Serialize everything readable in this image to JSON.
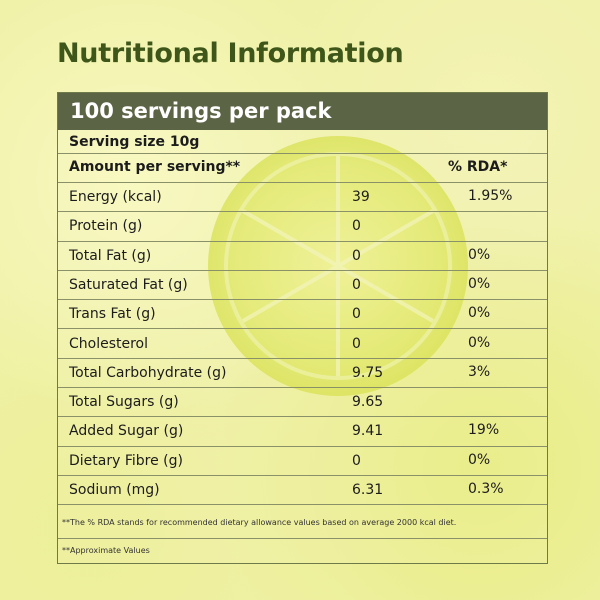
{
  "title": "Nutritional Information",
  "header": "100 servings per pack",
  "serving_size": "Serving size 10g",
  "amount_per_serving": "Amount per serving**",
  "rda_heading": "% RDA*",
  "nutrients": [
    {
      "name": "Energy (kcal)",
      "value": "39",
      "rda": "1.95%"
    },
    {
      "name": "Protein (g)",
      "value": "0",
      "rda": ""
    },
    {
      "name": "Total Fat  (g)",
      "value": "0",
      "rda": "0%"
    },
    {
      "name": "Saturated Fat (g)",
      "value": "0",
      "rda": "0%"
    },
    {
      "name": "Trans Fat (g)",
      "value": "0",
      "rda": "0%"
    },
    {
      "name": "Cholesterol",
      "value": "0",
      "rda": "0%"
    },
    {
      "name": "Total Carbohydrate (g)",
      "value": "9.75",
      "rda": "3%"
    },
    {
      "name": "Total Sugars (g)",
      "value": "9.65",
      "rda": ""
    },
    {
      "name": "Added Sugar (g)",
      "value": "9.41",
      "rda": "19%"
    },
    {
      "name": "Dietary Fibre (g)",
      "value": "0",
      "rda": "0%"
    },
    {
      "name": "Sodium (mg)",
      "value": "6.31",
      "rda": "0.3%"
    }
  ],
  "footnote_rda": "**The % RDA stands for recommended dietary allowance values based on average 2000 kcal diet.",
  "footnote_approx": "**Approximate Values",
  "colors": {
    "title": "#3e561a",
    "header_bar": "#5c6446",
    "border": "#8a9168",
    "background": "#eff1a7"
  }
}
